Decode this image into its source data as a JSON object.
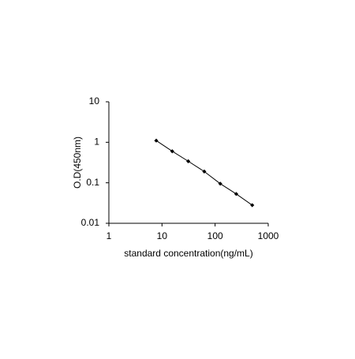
{
  "chart_data": {
    "type": "line",
    "x_label": "standard concentration(ng/mL)",
    "y_label": "O.D(450nm)",
    "x": [
      7.8,
      15.6,
      31.25,
      62.5,
      125,
      250,
      500
    ],
    "series": [
      {
        "color": "#000000",
        "values": [
          1.1,
          0.6,
          0.34,
          0.19,
          0.095,
          0.053,
          0.028
        ]
      }
    ],
    "xlim": [
      1,
      1000
    ],
    "xticks": [
      1,
      10,
      100,
      1000
    ],
    "ylim": [
      0.01,
      10
    ],
    "yticks": [
      0.01,
      0.1,
      1,
      10
    ],
    "xscale": "log",
    "yscale": "log",
    "grid": false
  }
}
